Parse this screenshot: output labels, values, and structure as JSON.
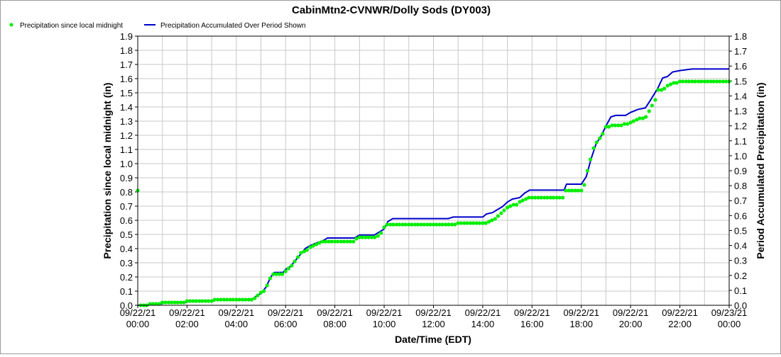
{
  "chart_data": {
    "type": "line",
    "title": "CabinMtn2-CVNWR/Dolly Sods (DY003)",
    "xlabel": "Date/Time (EDT)",
    "ylabel_left": "Precipitation since local midnight (in)",
    "ylabel_right": "Period Accumulated Precipitation (in)",
    "ylim_left": [
      0,
      1.9
    ],
    "ylim_right": [
      0,
      1.8
    ],
    "xlim_hours": [
      0,
      24
    ],
    "grid": true,
    "legend_position": "top-left",
    "y_ticks_left": [
      "0.0",
      "0.1",
      "0.2",
      "0.3",
      "0.4",
      "0.5",
      "0.6",
      "0.7",
      "0.8",
      "0.9",
      "1.0",
      "1.1",
      "1.2",
      "1.3",
      "1.4",
      "1.5",
      "1.6",
      "1.7",
      "1.8",
      "1.9"
    ],
    "y_ticks_right": [
      "0.0",
      "0.1",
      "0.2",
      "0.3",
      "0.4",
      "0.5",
      "0.6",
      "0.7",
      "0.8",
      "0.9",
      "1.0",
      "1.1",
      "1.2",
      "1.3",
      "1.4",
      "1.5",
      "1.6",
      "1.7",
      "1.8"
    ],
    "x_ticks": [
      {
        "date": "09/22/21",
        "time": "00:00",
        "hour": 0
      },
      {
        "date": "09/22/21",
        "time": "02:00",
        "hour": 2
      },
      {
        "date": "09/22/21",
        "time": "04:00",
        "hour": 4
      },
      {
        "date": "09/22/21",
        "time": "06:00",
        "hour": 6
      },
      {
        "date": "09/22/21",
        "time": "08:00",
        "hour": 8
      },
      {
        "date": "09/22/21",
        "time": "10:00",
        "hour": 10
      },
      {
        "date": "09/22/21",
        "time": "12:00",
        "hour": 12
      },
      {
        "date": "09/22/21",
        "time": "14:00",
        "hour": 14
      },
      {
        "date": "09/22/21",
        "time": "16:00",
        "hour": 16
      },
      {
        "date": "09/22/21",
        "time": "18:00",
        "hour": 18
      },
      {
        "date": "09/22/21",
        "time": "20:00",
        "hour": 20
      },
      {
        "date": "09/22/21",
        "time": "22:00",
        "hour": 22
      },
      {
        "date": "09/23/21",
        "time": "00:00",
        "hour": 24
      }
    ],
    "series": [
      {
        "name": "Precipitation since local midnight",
        "axis": "left",
        "color": "#00ee00",
        "style": "dots",
        "points": [
          [
            0.0,
            0.81
          ],
          [
            0.12,
            0.0
          ],
          [
            0.25,
            0.0
          ],
          [
            0.37,
            0.0
          ],
          [
            0.5,
            0.01
          ],
          [
            0.62,
            0.01
          ],
          [
            0.75,
            0.01
          ],
          [
            0.87,
            0.01
          ],
          [
            1.0,
            0.02
          ],
          [
            1.12,
            0.02
          ],
          [
            1.25,
            0.02
          ],
          [
            1.37,
            0.02
          ],
          [
            1.5,
            0.02
          ],
          [
            1.62,
            0.02
          ],
          [
            1.75,
            0.02
          ],
          [
            1.87,
            0.02
          ],
          [
            2.0,
            0.03
          ],
          [
            2.12,
            0.03
          ],
          [
            2.25,
            0.03
          ],
          [
            2.37,
            0.03
          ],
          [
            2.5,
            0.03
          ],
          [
            2.62,
            0.03
          ],
          [
            2.75,
            0.03
          ],
          [
            2.87,
            0.03
          ],
          [
            3.0,
            0.03
          ],
          [
            3.12,
            0.04
          ],
          [
            3.25,
            0.04
          ],
          [
            3.37,
            0.04
          ],
          [
            3.5,
            0.04
          ],
          [
            3.62,
            0.04
          ],
          [
            3.75,
            0.04
          ],
          [
            3.87,
            0.04
          ],
          [
            4.0,
            0.04
          ],
          [
            4.12,
            0.04
          ],
          [
            4.25,
            0.04
          ],
          [
            4.37,
            0.04
          ],
          [
            4.5,
            0.04
          ],
          [
            4.62,
            0.04
          ],
          [
            4.75,
            0.05
          ],
          [
            4.87,
            0.07
          ],
          [
            5.0,
            0.09
          ],
          [
            5.12,
            0.1
          ],
          [
            5.25,
            0.14
          ],
          [
            5.37,
            0.19
          ],
          [
            5.5,
            0.22
          ],
          [
            5.62,
            0.22
          ],
          [
            5.75,
            0.22
          ],
          [
            5.87,
            0.22
          ],
          [
            6.0,
            0.24
          ],
          [
            6.12,
            0.26
          ],
          [
            6.25,
            0.28
          ],
          [
            6.37,
            0.31
          ],
          [
            6.5,
            0.34
          ],
          [
            6.62,
            0.37
          ],
          [
            6.75,
            0.38
          ],
          [
            6.87,
            0.39
          ],
          [
            7.0,
            0.41
          ],
          [
            7.12,
            0.42
          ],
          [
            7.25,
            0.43
          ],
          [
            7.37,
            0.44
          ],
          [
            7.5,
            0.45
          ],
          [
            7.62,
            0.45
          ],
          [
            7.75,
            0.45
          ],
          [
            7.87,
            0.45
          ],
          [
            8.0,
            0.45
          ],
          [
            8.12,
            0.45
          ],
          [
            8.25,
            0.45
          ],
          [
            8.37,
            0.45
          ],
          [
            8.5,
            0.45
          ],
          [
            8.62,
            0.45
          ],
          [
            8.75,
            0.45
          ],
          [
            8.87,
            0.47
          ],
          [
            9.0,
            0.48
          ],
          [
            9.12,
            0.48
          ],
          [
            9.25,
            0.48
          ],
          [
            9.37,
            0.48
          ],
          [
            9.5,
            0.48
          ],
          [
            9.62,
            0.48
          ],
          [
            9.75,
            0.49
          ],
          [
            9.87,
            0.51
          ],
          [
            10.0,
            0.55
          ],
          [
            10.12,
            0.57
          ],
          [
            10.25,
            0.57
          ],
          [
            10.37,
            0.57
          ],
          [
            10.5,
            0.57
          ],
          [
            10.62,
            0.57
          ],
          [
            10.75,
            0.57
          ],
          [
            10.87,
            0.57
          ],
          [
            11.0,
            0.57
          ],
          [
            11.12,
            0.57
          ],
          [
            11.25,
            0.57
          ],
          [
            11.37,
            0.57
          ],
          [
            11.5,
            0.57
          ],
          [
            11.62,
            0.57
          ],
          [
            11.75,
            0.57
          ],
          [
            11.87,
            0.57
          ],
          [
            12.0,
            0.57
          ],
          [
            12.12,
            0.57
          ],
          [
            12.25,
            0.57
          ],
          [
            12.37,
            0.57
          ],
          [
            12.5,
            0.57
          ],
          [
            12.62,
            0.57
          ],
          [
            12.75,
            0.57
          ],
          [
            12.87,
            0.57
          ],
          [
            13.0,
            0.58
          ],
          [
            13.12,
            0.58
          ],
          [
            13.25,
            0.58
          ],
          [
            13.37,
            0.58
          ],
          [
            13.5,
            0.58
          ],
          [
            13.62,
            0.58
          ],
          [
            13.75,
            0.58
          ],
          [
            13.87,
            0.58
          ],
          [
            14.0,
            0.58
          ],
          [
            14.12,
            0.58
          ],
          [
            14.25,
            0.59
          ],
          [
            14.37,
            0.6
          ],
          [
            14.5,
            0.61
          ],
          [
            14.62,
            0.63
          ],
          [
            14.75,
            0.65
          ],
          [
            14.87,
            0.67
          ],
          [
            15.0,
            0.69
          ],
          [
            15.12,
            0.7
          ],
          [
            15.25,
            0.71
          ],
          [
            15.37,
            0.71
          ],
          [
            15.5,
            0.73
          ],
          [
            15.62,
            0.74
          ],
          [
            15.75,
            0.75
          ],
          [
            15.87,
            0.76
          ],
          [
            16.0,
            0.76
          ],
          [
            16.12,
            0.76
          ],
          [
            16.25,
            0.76
          ],
          [
            16.37,
            0.76
          ],
          [
            16.5,
            0.76
          ],
          [
            16.62,
            0.76
          ],
          [
            16.75,
            0.76
          ],
          [
            16.87,
            0.76
          ],
          [
            17.0,
            0.76
          ],
          [
            17.12,
            0.76
          ],
          [
            17.25,
            0.76
          ],
          [
            17.37,
            0.81
          ],
          [
            17.5,
            0.81
          ],
          [
            17.62,
            0.81
          ],
          [
            17.75,
            0.81
          ],
          [
            17.87,
            0.81
          ],
          [
            18.0,
            0.81
          ],
          [
            18.12,
            0.85
          ],
          [
            18.25,
            0.95
          ],
          [
            18.37,
            1.03
          ],
          [
            18.5,
            1.11
          ],
          [
            18.62,
            1.15
          ],
          [
            18.75,
            1.18
          ],
          [
            18.87,
            1.21
          ],
          [
            19.0,
            1.26
          ],
          [
            19.12,
            1.26
          ],
          [
            19.25,
            1.27
          ],
          [
            19.37,
            1.27
          ],
          [
            19.5,
            1.27
          ],
          [
            19.62,
            1.27
          ],
          [
            19.75,
            1.28
          ],
          [
            19.87,
            1.28
          ],
          [
            20.0,
            1.29
          ],
          [
            20.12,
            1.3
          ],
          [
            20.25,
            1.31
          ],
          [
            20.37,
            1.32
          ],
          [
            20.5,
            1.32
          ],
          [
            20.62,
            1.33
          ],
          [
            20.75,
            1.37
          ],
          [
            20.87,
            1.41
          ],
          [
            21.0,
            1.45
          ],
          [
            21.12,
            1.52
          ],
          [
            21.25,
            1.52
          ],
          [
            21.37,
            1.53
          ],
          [
            21.5,
            1.55
          ],
          [
            21.62,
            1.56
          ],
          [
            21.75,
            1.57
          ],
          [
            21.87,
            1.57
          ],
          [
            22.0,
            1.58
          ],
          [
            22.12,
            1.58
          ],
          [
            22.25,
            1.58
          ],
          [
            22.37,
            1.58
          ],
          [
            22.5,
            1.58
          ],
          [
            22.62,
            1.58
          ],
          [
            22.75,
            1.58
          ],
          [
            22.87,
            1.58
          ],
          [
            23.0,
            1.58
          ],
          [
            23.12,
            1.58
          ],
          [
            23.25,
            1.58
          ],
          [
            23.37,
            1.58
          ],
          [
            23.5,
            1.58
          ],
          [
            23.62,
            1.58
          ],
          [
            23.75,
            1.58
          ],
          [
            23.87,
            1.58
          ],
          [
            24.0,
            1.58
          ]
        ]
      },
      {
        "name": "Precipitation Accumulated Over Period Shown",
        "axis": "right",
        "color": "#0000cc",
        "style": "line",
        "points": [
          [
            0.0,
            0.0
          ],
          [
            0.4,
            0.0
          ],
          [
            0.55,
            0.01
          ],
          [
            1.0,
            0.01
          ],
          [
            1.05,
            0.02
          ],
          [
            2.0,
            0.02
          ],
          [
            2.05,
            0.03
          ],
          [
            3.1,
            0.03
          ],
          [
            3.15,
            0.04
          ],
          [
            4.65,
            0.04
          ],
          [
            4.8,
            0.06
          ],
          [
            5.0,
            0.08
          ],
          [
            5.2,
            0.12
          ],
          [
            5.4,
            0.19
          ],
          [
            5.55,
            0.22
          ],
          [
            5.9,
            0.22
          ],
          [
            6.0,
            0.24
          ],
          [
            6.2,
            0.26
          ],
          [
            6.4,
            0.3
          ],
          [
            6.6,
            0.34
          ],
          [
            6.8,
            0.38
          ],
          [
            7.0,
            0.4
          ],
          [
            7.3,
            0.42
          ],
          [
            7.5,
            0.43
          ],
          [
            7.7,
            0.45
          ],
          [
            8.8,
            0.45
          ],
          [
            9.0,
            0.47
          ],
          [
            9.6,
            0.47
          ],
          [
            9.8,
            0.49
          ],
          [
            10.0,
            0.51
          ],
          [
            10.15,
            0.56
          ],
          [
            10.35,
            0.58
          ],
          [
            12.6,
            0.58
          ],
          [
            12.8,
            0.59
          ],
          [
            14.0,
            0.59
          ],
          [
            14.15,
            0.61
          ],
          [
            14.4,
            0.62
          ],
          [
            14.6,
            0.64
          ],
          [
            14.8,
            0.66
          ],
          [
            15.0,
            0.69
          ],
          [
            15.2,
            0.71
          ],
          [
            15.5,
            0.72
          ],
          [
            15.7,
            0.75
          ],
          [
            15.9,
            0.77
          ],
          [
            17.3,
            0.77
          ],
          [
            17.4,
            0.81
          ],
          [
            18.0,
            0.81
          ],
          [
            18.2,
            0.86
          ],
          [
            18.4,
            0.98
          ],
          [
            18.6,
            1.08
          ],
          [
            18.8,
            1.13
          ],
          [
            19.0,
            1.2
          ],
          [
            19.2,
            1.26
          ],
          [
            19.4,
            1.27
          ],
          [
            19.8,
            1.27
          ],
          [
            20.0,
            1.29
          ],
          [
            20.3,
            1.31
          ],
          [
            20.6,
            1.32
          ],
          [
            20.8,
            1.37
          ],
          [
            21.1,
            1.45
          ],
          [
            21.3,
            1.52
          ],
          [
            21.5,
            1.53
          ],
          [
            21.7,
            1.56
          ],
          [
            22.0,
            1.57
          ],
          [
            22.5,
            1.58
          ],
          [
            24.0,
            1.58
          ]
        ]
      }
    ]
  }
}
